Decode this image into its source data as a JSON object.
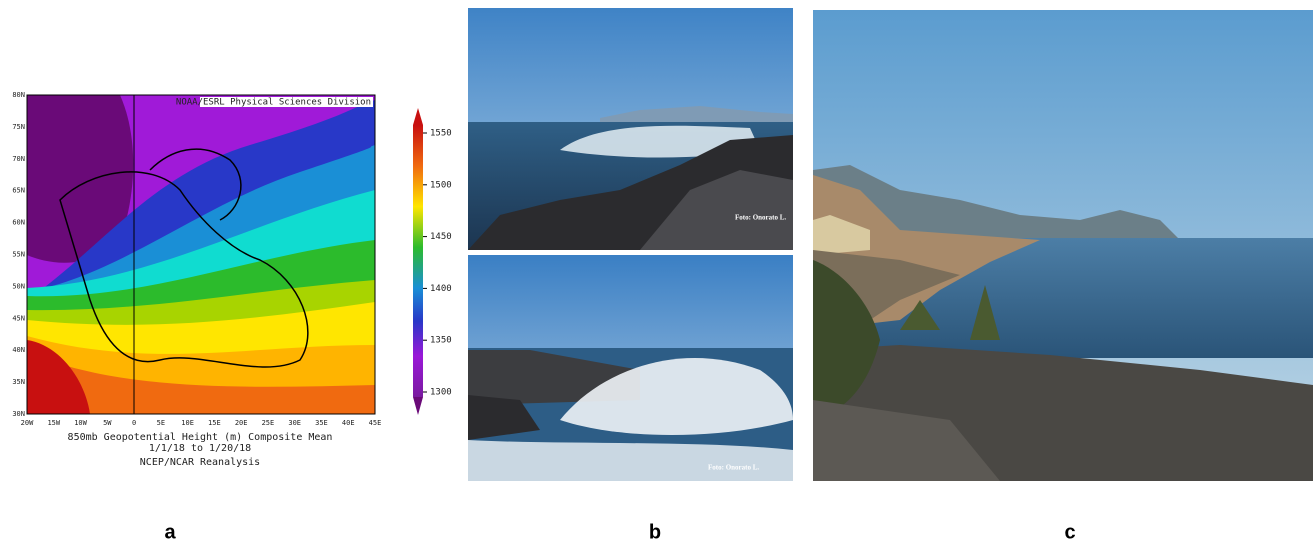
{
  "panels": [
    {
      "label": "a",
      "map": {
        "source": "NOAA/ESRL Physical Sciences Division",
        "lat_labels": [
          "80N",
          "75N",
          "70N",
          "65N",
          "60N",
          "55N",
          "50N",
          "45N",
          "40N",
          "35N",
          "30N"
        ],
        "lon_labels": [
          "20W",
          "15W",
          "10W",
          "5W",
          "0",
          "5E",
          "10E",
          "15E",
          "20E",
          "25E",
          "30E",
          "35E",
          "40E",
          "45E"
        ],
        "caption": [
          "850mb Geopotential Height (m) Composite Mean",
          "1/1/18  to 1/20/18",
          "NCEP/NCAR Reanalysis"
        ],
        "colorbar_ticks": [
          1550,
          1500,
          1450,
          1400,
          1350,
          1300
        ]
      }
    },
    {
      "label": "b",
      "photo_credits": [
        "Foto: Onorato L.",
        "Foto: Onorato L."
      ]
    },
    {
      "label": "c"
    }
  ]
}
